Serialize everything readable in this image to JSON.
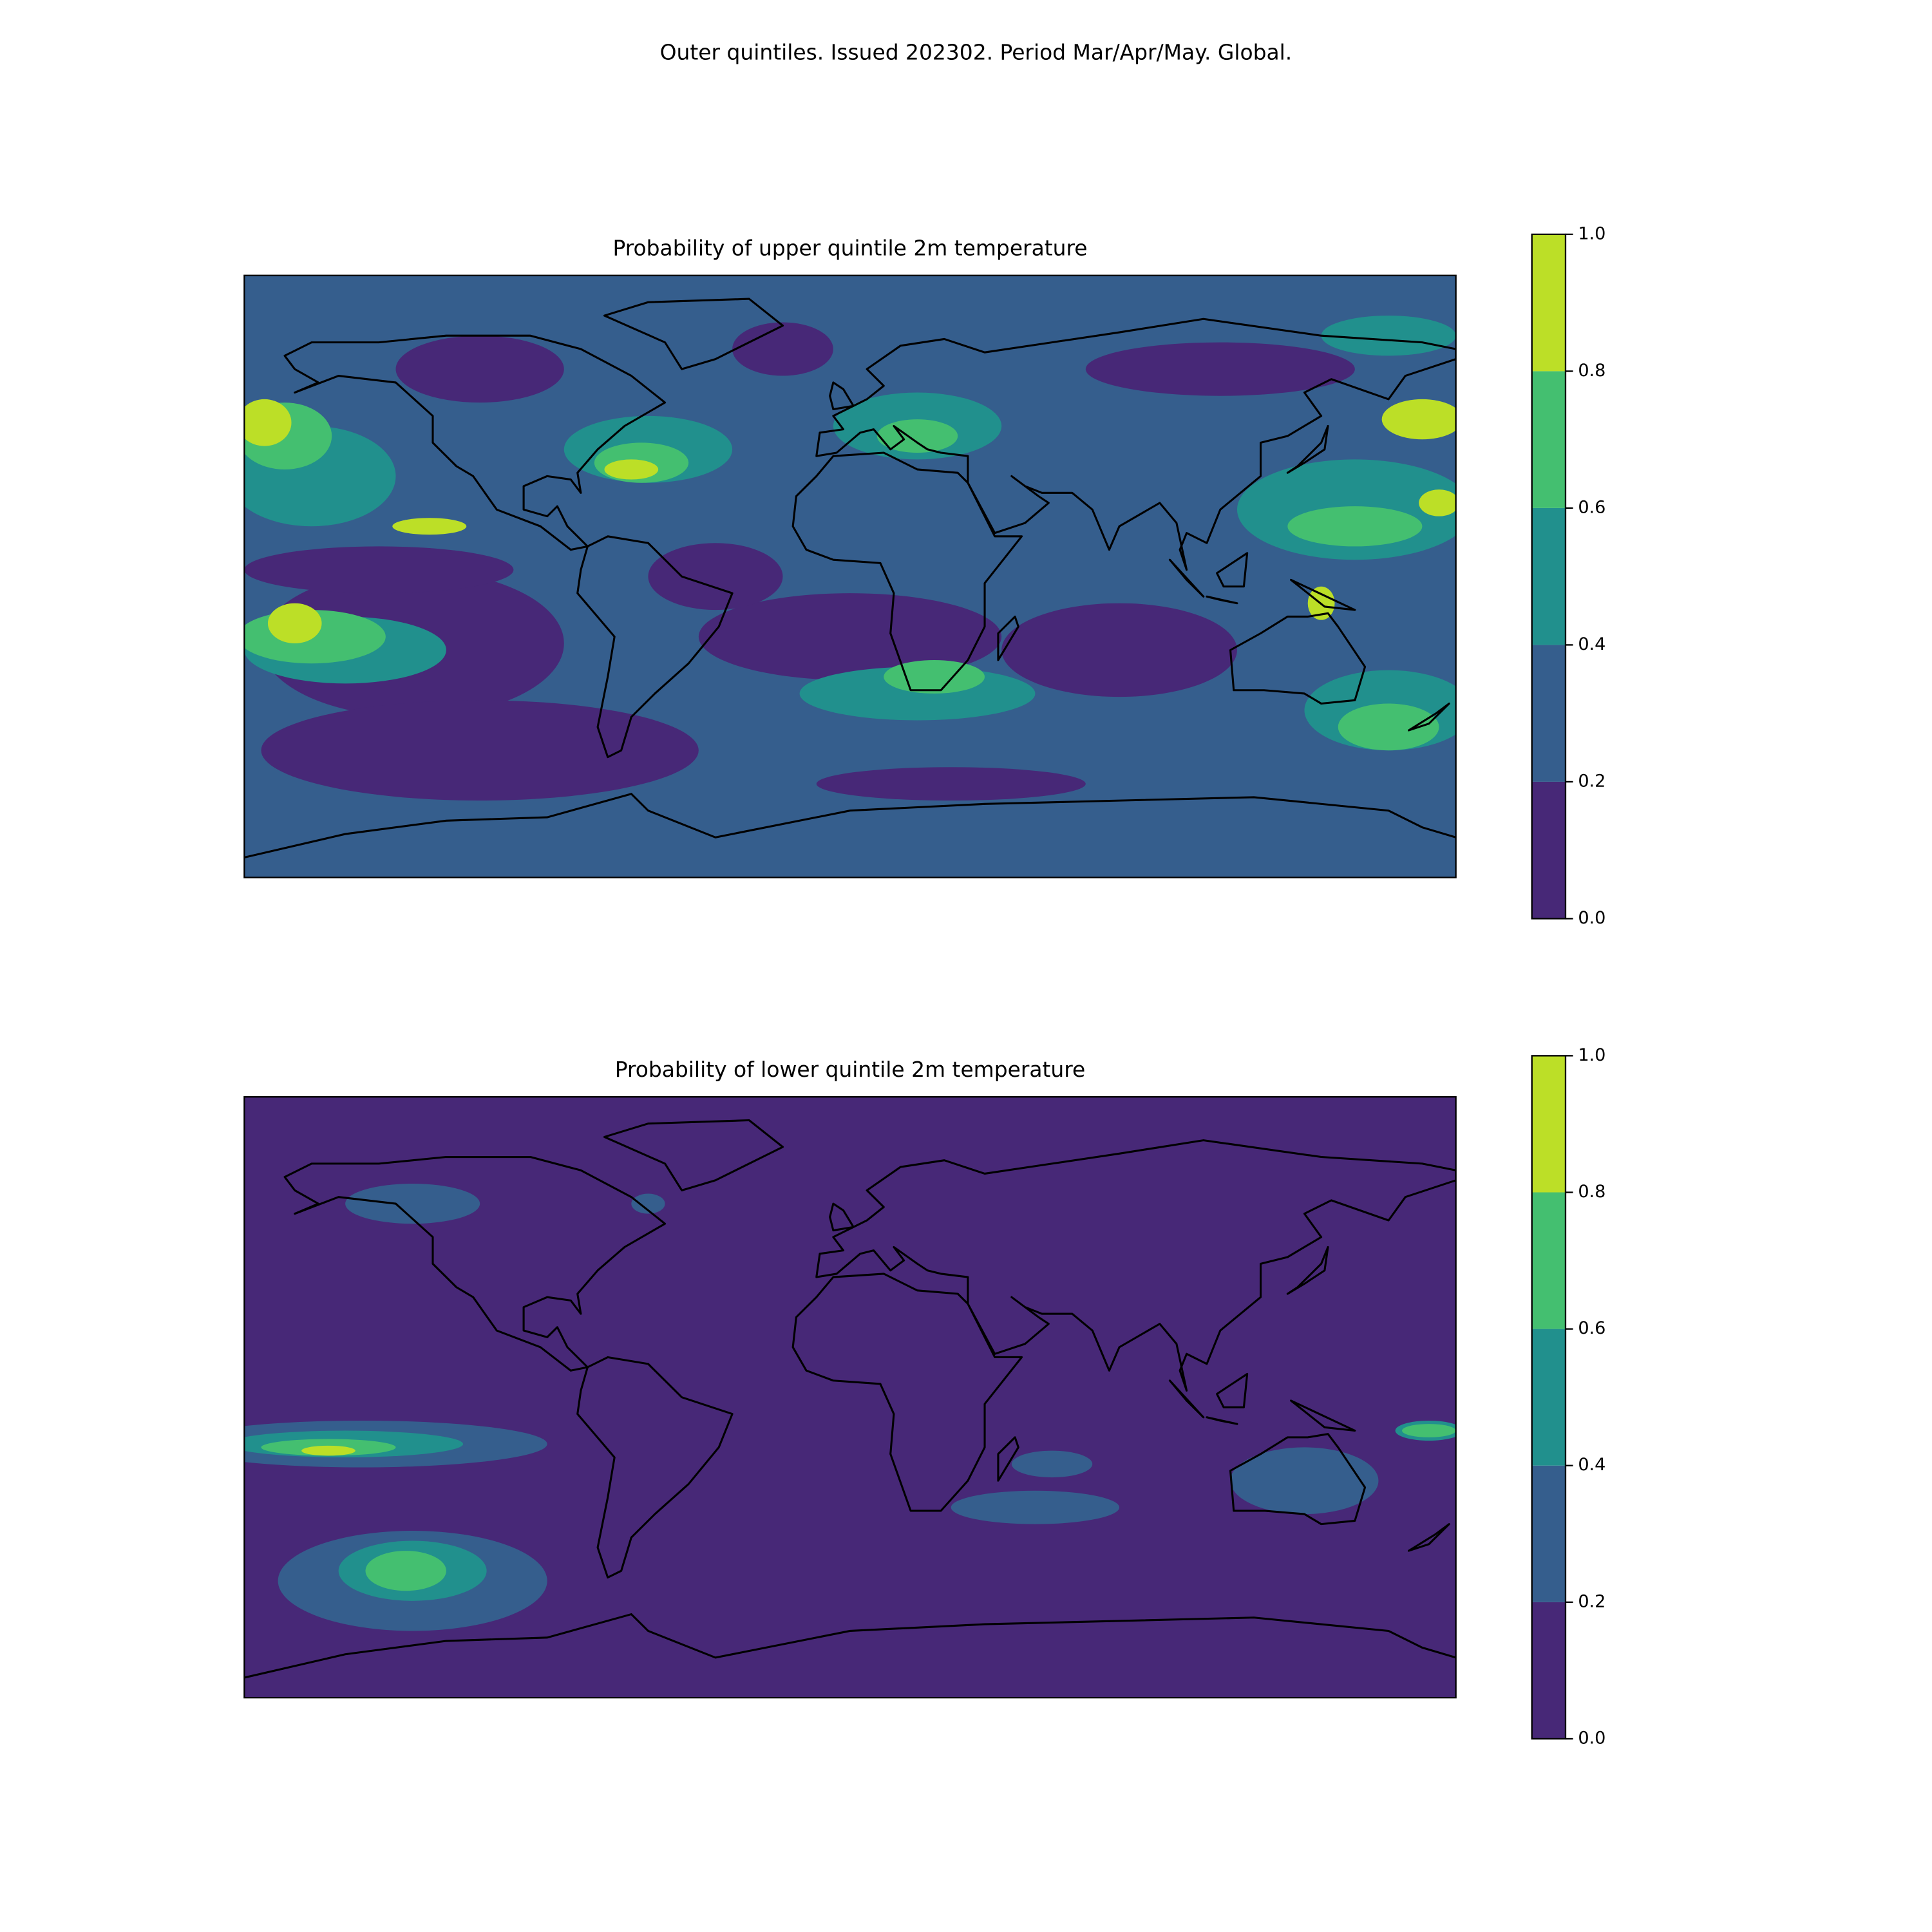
{
  "title": "Outer quintiles. Issued 202302. Period Mar/Apr/May. Global.",
  "panels": [
    {
      "title": "Probability of upper quintile 2m temperature",
      "colorbar": {
        "ticks": [
          {
            "value": 0,
            "label": "0.0"
          },
          0.2,
          0.4,
          0.6,
          0.8,
          {
            "value": 1,
            "label": "1.0"
          }
        ],
        "colors": [
          "#472877",
          "#355e8d",
          "#21908d",
          "#44bf70",
          "#bcdf27"
        ]
      }
    },
    {
      "title": "Probability of lower quintile 2m temperature",
      "colorbar": {
        "ticks": [
          {
            "value": 0,
            "label": "0.0"
          },
          0.2,
          0.4,
          0.6,
          0.8,
          {
            "value": 1,
            "label": "1.0"
          }
        ],
        "colors": [
          "#472877",
          "#355e8d",
          "#21908d",
          "#44bf70",
          "#bcdf27"
        ]
      }
    }
  ]
}
